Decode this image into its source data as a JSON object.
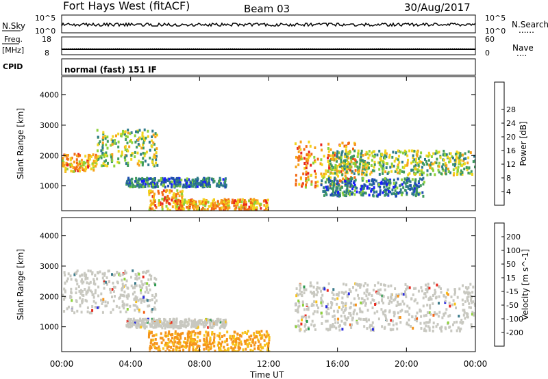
{
  "header": {
    "radar": "Fort Hays West (fitACF)",
    "beam": "Beam 03",
    "date": "30/Aug/2017"
  },
  "strips": {
    "nsky": {
      "label": "N.Sky",
      "tick_top": "10^5",
      "tick_bot": "10^0",
      "right_top": "10^5",
      "right_bot": "10^0",
      "right_label": "N.Search",
      "right_dots": "......"
    },
    "freq": {
      "label": "Freq.",
      "unit": "[MHz]",
      "tick_top": "18",
      "tick_bot": "8",
      "right_top": "60",
      "right_bot": "0",
      "right_label": "Nave",
      "right_dots": "...."
    },
    "cpid": {
      "label": "CPID",
      "mode": "normal (fast) 151 IF"
    }
  },
  "chart_data": [
    {
      "type": "heatmap",
      "name": "power",
      "ylabel": "Slant Range [km]",
      "yticks": [
        1000,
        2000,
        3000,
        4000
      ],
      "ylim": [
        180,
        4600
      ],
      "xticks": [
        "00:00",
        "04:00",
        "08:00",
        "12:00",
        "16:00",
        "20:00",
        "00:00"
      ],
      "xlim_hours": [
        0,
        24
      ],
      "colorbar": {
        "label": "Power [dB]",
        "ticks": [
          "4",
          "8",
          "12",
          "16",
          "20",
          "24",
          "28"
        ],
        "colors": [
          "#1a1aff",
          "#1f4fb0",
          "#2e7a8a",
          "#3f9a5f",
          "#8ed23a",
          "#f2d41c",
          "#f7a21b",
          "#f26a14",
          "#e8271d"
        ]
      },
      "regions": [
        {
          "t": [
            0.0,
            2.0
          ],
          "r": [
            1500,
            2100
          ],
          "level": "high"
        },
        {
          "t": [
            2.0,
            5.5
          ],
          "r": [
            1700,
            2900
          ],
          "level": "mid"
        },
        {
          "t": [
            3.7,
            9.5
          ],
          "r": [
            1000,
            1300
          ],
          "level": "low"
        },
        {
          "t": [
            5.0,
            7.0
          ],
          "r": [
            200,
            900
          ],
          "level": "high"
        },
        {
          "t": [
            6.5,
            12.0
          ],
          "r": [
            200,
            600
          ],
          "level": "high"
        },
        {
          "t": [
            13.5,
            17.0
          ],
          "r": [
            1000,
            2500
          ],
          "level": "high"
        },
        {
          "t": [
            15.5,
            24.0
          ],
          "r": [
            1400,
            2200
          ],
          "level": "mid"
        },
        {
          "t": [
            15.0,
            21.0
          ],
          "r": [
            700,
            1300
          ],
          "level": "low"
        }
      ]
    },
    {
      "type": "heatmap",
      "name": "velocity",
      "ylabel": "Slant Range [km]",
      "xlabel": "Time UT",
      "yticks": [
        1000,
        2000,
        3000,
        4000
      ],
      "ylim": [
        180,
        4600
      ],
      "xticks": [
        "00:00",
        "04:00",
        "08:00",
        "12:00",
        "16:00",
        "20:00",
        "00:00"
      ],
      "xlim_hours": [
        0,
        24
      ],
      "colorbar": {
        "label": "Velocity [m s^-1]",
        "ticks": [
          "200",
          "100",
          "50",
          "15",
          "-15",
          "-50",
          "-100",
          "-200"
        ],
        "colors": [
          "#2a2ae0",
          "#3a7a8a",
          "#2f9a4f",
          "#8ed23a",
          "#c8c8c0",
          "#f7c21b",
          "#f5941b",
          "#f2641a",
          "#e8271d"
        ]
      },
      "regions": [
        {
          "t": [
            0.0,
            5.5
          ],
          "r": [
            1500,
            2900
          ],
          "level": "ground"
        },
        {
          "t": [
            3.7,
            9.5
          ],
          "r": [
            1000,
            1300
          ],
          "level": "ground"
        },
        {
          "t": [
            5.0,
            12.0
          ],
          "r": [
            200,
            900
          ],
          "level": "negative"
        },
        {
          "t": [
            13.5,
            24.0
          ],
          "r": [
            900,
            2500
          ],
          "level": "ground"
        }
      ]
    }
  ],
  "xaxis": {
    "title": "Time UT"
  }
}
